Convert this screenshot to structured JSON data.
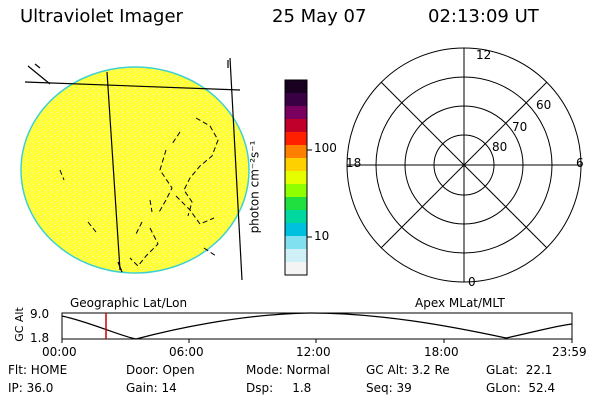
{
  "header": {
    "title": "Ultraviolet Imager",
    "date": "25 May 07",
    "time": "02:13:09 UT"
  },
  "colorbar": {
    "label": "photon cm⁻²s⁻¹",
    "ticks": [
      "100",
      "10"
    ],
    "colors": [
      "#1a0020",
      "#3a0044",
      "#7a0060",
      "#c0002a",
      "#ff2000",
      "#ff8000",
      "#ffd000",
      "#e6ff00",
      "#90ff00",
      "#20e040",
      "#00d8a0",
      "#00c0e0",
      "#80e0f0",
      "#d0f0f8",
      "#f4f4f4"
    ]
  },
  "left_panel": {
    "caption": "Geographic Lat/Lon",
    "disk_color": "#ffff33",
    "rim_color": "#40d0d0"
  },
  "right_panel": {
    "caption": "Apex MLat/MLT",
    "mlt_labels": {
      "top": "12",
      "bottom": "0",
      "left": "18",
      "right": "6"
    },
    "lat_labels": [
      "60",
      "70",
      "80"
    ]
  },
  "altitude": {
    "ylabel": "GC Alt",
    "ticks": [
      "9.0",
      "1.8"
    ],
    "time_ticks": [
      "00:00",
      "06:00",
      "12:00",
      "18:00",
      "23:59"
    ],
    "marker_color": "#cc0000"
  },
  "info": {
    "flt": "Flt: HOME",
    "ip": "IP: 36.0",
    "door": "Door: Open",
    "gain": "Gain: 14",
    "mode": "Mode: Normal",
    "dsp": "Dsp:     1.8",
    "gcalt": "GC Alt: 3.2 Re",
    "seq": "Seq: 39",
    "glat": "GLat:  22.1",
    "glon": "GLon:  52.4"
  }
}
